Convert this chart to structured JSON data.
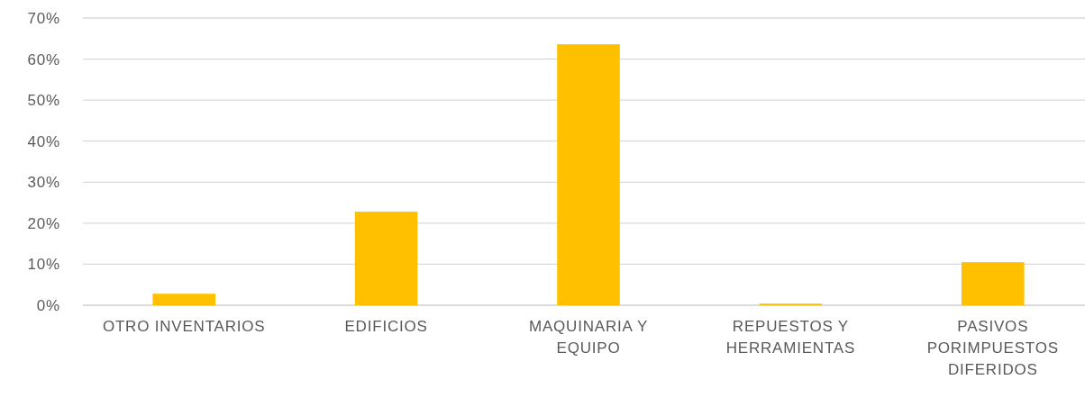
{
  "chart_data": {
    "type": "bar",
    "categories": [
      "OTRO INVENTARIOS",
      "EDIFICIOS",
      "MAQUINARIA Y EQUIPO",
      "REPUESTOS Y HERRAMIENTAS",
      "PASIVOS PORIMPUESTOS DIFERIDOS"
    ],
    "values": [
      2.8,
      22.8,
      63.6,
      0.4,
      10.5
    ],
    "color": "#ffc000",
    "ylim": [
      0,
      70
    ],
    "yticks": [
      {
        "value": 0,
        "label": "0%"
      },
      {
        "value": 10,
        "label": "10%"
      },
      {
        "value": 20,
        "label": "20%"
      },
      {
        "value": 30,
        "label": "30%"
      },
      {
        "value": 40,
        "label": "40%"
      },
      {
        "value": 50,
        "label": "50%"
      },
      {
        "value": 60,
        "label": "60%"
      },
      {
        "value": 70,
        "label": "70%"
      }
    ],
    "grid": true
  }
}
